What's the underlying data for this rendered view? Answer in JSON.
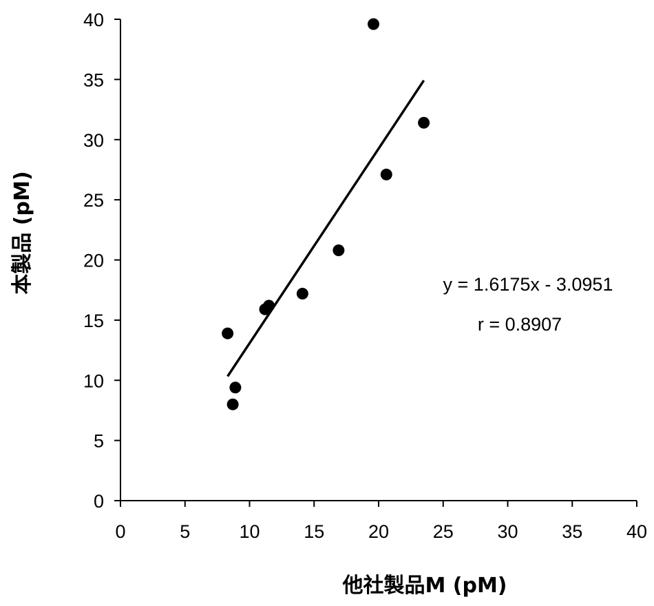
{
  "chart_data": {
    "type": "scatter",
    "xlabel": "他社製品M (pM)",
    "ylabel": "本製品 (pM)",
    "xlim": [
      0,
      40
    ],
    "ylim": [
      0,
      40
    ],
    "x_ticks": [
      "0",
      "5",
      "10",
      "15",
      "20",
      "25",
      "30",
      "35",
      "40"
    ],
    "y_ticks": [
      "0",
      "5",
      "10",
      "15",
      "20",
      "25",
      "30",
      "35",
      "40"
    ],
    "grid": false,
    "legend": "none",
    "points": [
      {
        "x": 8.3,
        "y": 13.9
      },
      {
        "x": 8.7,
        "y": 8.0
      },
      {
        "x": 8.9,
        "y": 9.4
      },
      {
        "x": 11.2,
        "y": 15.9
      },
      {
        "x": 11.5,
        "y": 16.2
      },
      {
        "x": 14.1,
        "y": 17.2
      },
      {
        "x": 16.9,
        "y": 20.8
      },
      {
        "x": 19.6,
        "y": 39.6
      },
      {
        "x": 20.6,
        "y": 27.1
      },
      {
        "x": 23.5,
        "y": 31.4
      }
    ],
    "trendline": {
      "slope": 1.6175,
      "intercept": -3.0951,
      "x_range": [
        8.3,
        23.5
      ]
    },
    "annotations": {
      "equation": "y = 1.6175x - 3.0951",
      "r_value": "r = 0.8907"
    },
    "colors": {
      "marker": "#000000",
      "line": "#000000",
      "axis": "#000000"
    }
  }
}
